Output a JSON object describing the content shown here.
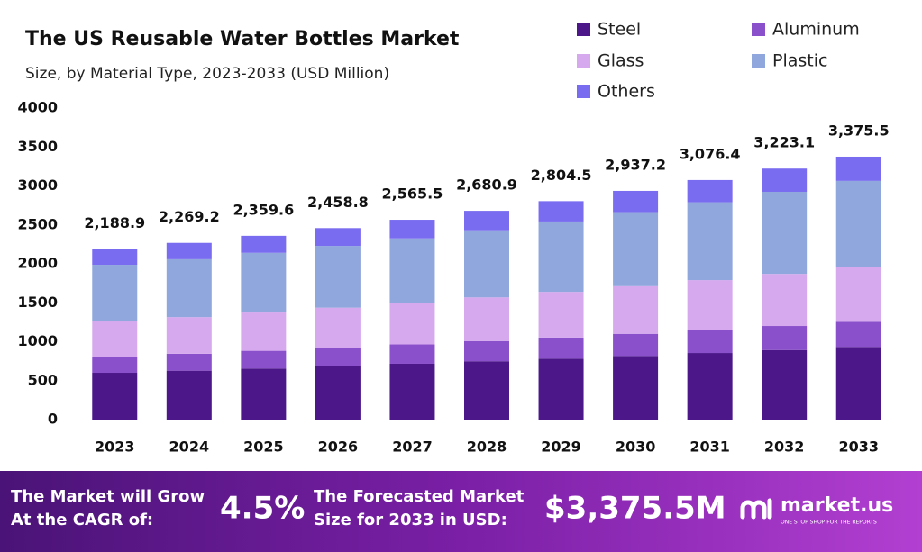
{
  "chart_data": {
    "type": "stacked_bar",
    "title": "The US Reusable Water Bottles Market",
    "subtitle": "Size, by Material Type, 2023-2033 (USD Million)",
    "categories": [
      "2023",
      "2024",
      "2025",
      "2026",
      "2027",
      "2028",
      "2029",
      "2030",
      "2031",
      "2032",
      "2033"
    ],
    "series": [
      {
        "name": "Steel",
        "color": "#4b1789",
        "values": [
          601,
          628,
          656,
          686,
          717,
          749,
          783,
          818,
          855,
          893,
          933
        ]
      },
      {
        "name": "Aluminum",
        "color": "#8a4fcb",
        "values": [
          208,
          217,
          227,
          237,
          248,
          259,
          271,
          283,
          296,
          309,
          323
        ]
      },
      {
        "name": "Glass",
        "color": "#d6a9ee",
        "values": [
          451,
          471,
          492,
          514,
          537,
          561,
          586,
          612,
          640,
          669,
          699
        ]
      },
      {
        "name": "Plastic",
        "color": "#90a7dd",
        "values": [
          728,
          743,
          766,
          793,
          825,
          862,
          904,
          951,
          1000,
          1054,
          1110
        ]
      },
      {
        "name": "Others",
        "color": "#7a6cf0",
        "values": [
          201,
          210,
          219,
          229,
          239,
          250,
          261,
          273,
          285,
          298,
          311
        ]
      }
    ],
    "totals": [
      2188.9,
      2269.2,
      2359.6,
      2458.8,
      2565.5,
      2680.9,
      2804.5,
      2937.2,
      3076.4,
      3223.1,
      3375.5
    ],
    "total_labels": [
      "2,188.9",
      "2,269.2",
      "2,359.6",
      "2,458.8",
      "2,565.5",
      "2,680.9",
      "2,804.5",
      "2,937.2",
      "3,076.4",
      "3,223.1",
      "3,375.5"
    ],
    "ylim": [
      0,
      4000
    ],
    "yticks": [
      0,
      500,
      1000,
      1500,
      2000,
      2500,
      3000,
      3500,
      4000
    ],
    "grid": false
  },
  "footer": {
    "cagr_text": [
      "The Market will Grow",
      "At the CAGR of:"
    ],
    "cagr": "4.5%",
    "forecast_text": [
      "The Forecasted Market",
      "Size for 2033 in USD:"
    ],
    "forecast": "$3,375.5M",
    "brand": "market.us",
    "tagline": "ONE STOP SHOP FOR THE REPORTS"
  }
}
